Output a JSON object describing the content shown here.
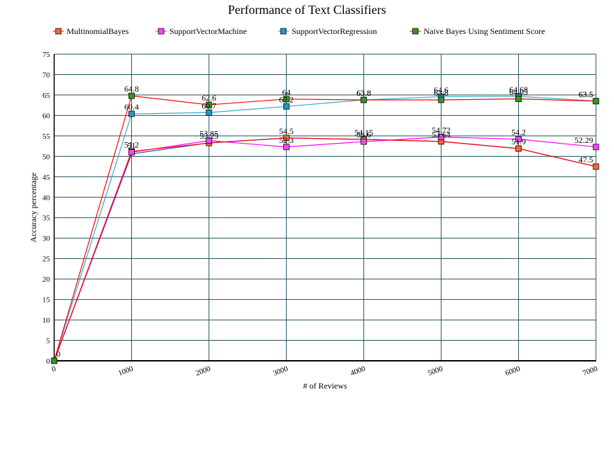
{
  "chart_data": {
    "type": "line",
    "title": "Performance of Text Classifiers",
    "xlabel": "# of Reviews",
    "ylabel": "Accuracy percentage",
    "x": [
      0,
      1000,
      2000,
      3000,
      4000,
      5000,
      6000,
      7000
    ],
    "x_tick_labels": [
      "0",
      "1000",
      "2000",
      "3000",
      "4000",
      "5000",
      "6000",
      "7000"
    ],
    "xlim": [
      0,
      7000
    ],
    "y_ticks": [
      0,
      5,
      10,
      15,
      20,
      25,
      30,
      35,
      40,
      45,
      50,
      55,
      60,
      65,
      70,
      75
    ],
    "ylim": [
      0,
      75
    ],
    "grid": true,
    "legend_position": "top",
    "series": [
      {
        "name": "MultinomialBayes",
        "line_color": "#ff0000",
        "marker_color": "#ff6633",
        "values": [
          0,
          51.2,
          53.25,
          54.5,
          54.15,
          53.64,
          51.9,
          47.5
        ],
        "labels": [
          "0",
          "51.2",
          "53.25",
          "54.5",
          "54.15",
          "53.64",
          "51.9",
          "47.5"
        ]
      },
      {
        "name": "SupportVectorMachine",
        "line_color": "#ff00ff",
        "marker_color": "#ff44ff",
        "values": [
          0,
          51.0,
          53.85,
          52.3,
          53.6,
          54.72,
          54.2,
          52.29
        ],
        "labels": [
          "0",
          "51",
          "53.85",
          "52.3",
          "53.6",
          "54.72",
          "54.2",
          "52.29"
        ]
      },
      {
        "name": "SupportVectorRegression",
        "line_color": "#33aacc",
        "marker_color": "#2299cc",
        "values": [
          0,
          60.4,
          60.7,
          62.2,
          63.8,
          64.6,
          64.68,
          63.5
        ],
        "labels": [
          "0",
          "60.4",
          "60.7",
          "62.2",
          "63.8",
          "64.6",
          "64.68",
          "63.5"
        ]
      },
      {
        "name": "Naive Bayes Using Sentiment Score",
        "line_color": "#ff0000",
        "marker_color": "#339922",
        "values": [
          0,
          64.8,
          62.6,
          64.0,
          63.8,
          63.8,
          64.05,
          63.5
        ],
        "labels": [
          "0",
          "64.8",
          "62.6",
          "64",
          "63.8",
          "63.8",
          "64.05",
          "63.5"
        ]
      }
    ],
    "blue_line": {
      "color": "#3333cc",
      "values": [
        0,
        50.6,
        53.3,
        54.5,
        54.15,
        53.64,
        51.9,
        47.5
      ]
    }
  }
}
